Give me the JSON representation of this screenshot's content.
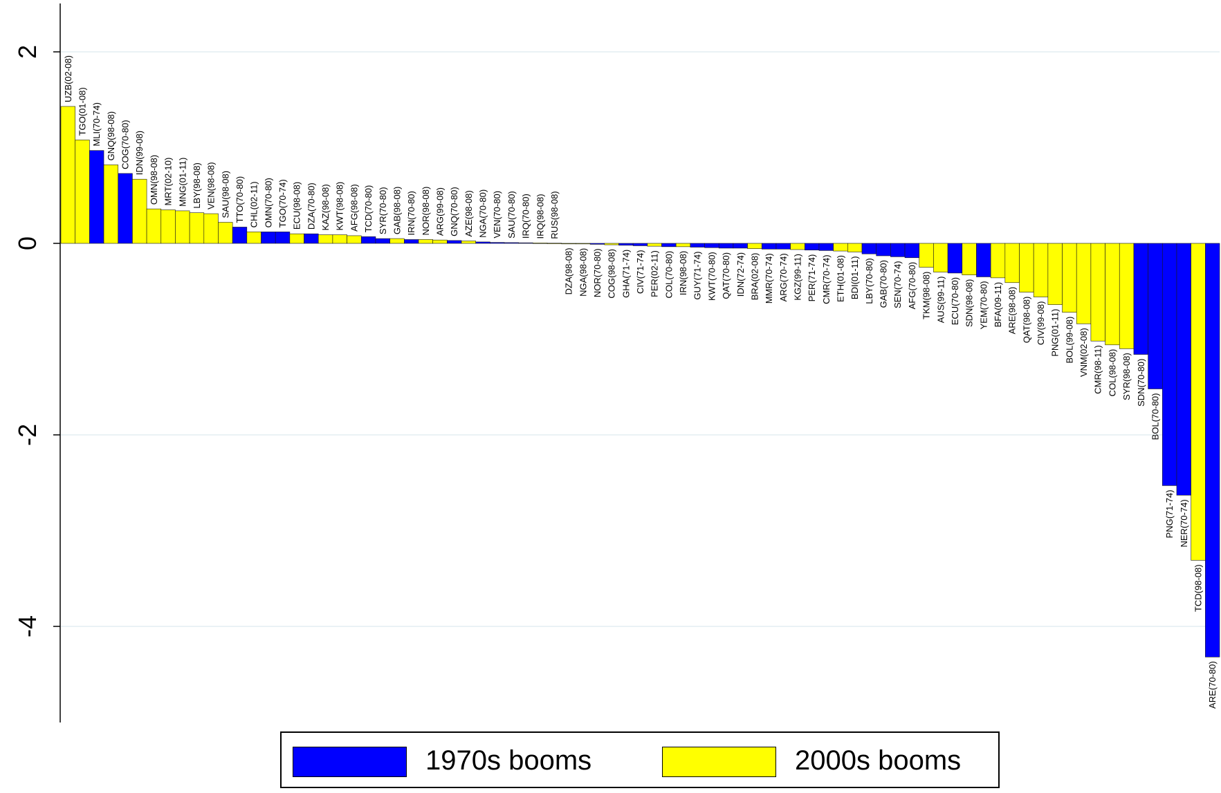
{
  "chart_data": {
    "type": "bar",
    "ylim": [
      -5,
      2.5
    ],
    "yticks": [
      "2",
      "0",
      "-2",
      "-4"
    ],
    "ytick_values": [
      2,
      0,
      -2,
      -4
    ],
    "grid": true,
    "legend": {
      "placement": "bottom",
      "entries": [
        {
          "key": "1970s",
          "label": "1970s booms",
          "color": "#0000ff"
        },
        {
          "key": "2000s",
          "label": "2000s booms",
          "color": "#ffff00"
        }
      ]
    },
    "bars": [
      {
        "label": "UZB(02-08)",
        "value": 1.43,
        "series": "2000s"
      },
      {
        "label": "TGO(01-08)",
        "value": 1.08,
        "series": "2000s"
      },
      {
        "label": "MLI(70-74)",
        "value": 0.97,
        "series": "1970s"
      },
      {
        "label": "GNQ(98-08)",
        "value": 0.82,
        "series": "2000s"
      },
      {
        "label": "COG(70-80)",
        "value": 0.73,
        "series": "1970s"
      },
      {
        "label": "IDN(99-08)",
        "value": 0.67,
        "series": "2000s"
      },
      {
        "label": "OMN(98-08)",
        "value": 0.36,
        "series": "2000s"
      },
      {
        "label": "MRT(02-10)",
        "value": 0.35,
        "series": "2000s"
      },
      {
        "label": "MNG(01-11)",
        "value": 0.34,
        "series": "2000s"
      },
      {
        "label": "LBY(98-08)",
        "value": 0.32,
        "series": "2000s"
      },
      {
        "label": "VEN(98-08)",
        "value": 0.31,
        "series": "2000s"
      },
      {
        "label": "SAU(98-08)",
        "value": 0.22,
        "series": "2000s"
      },
      {
        "label": "TTO(70-80)",
        "value": 0.17,
        "series": "1970s"
      },
      {
        "label": "CHL(02-11)",
        "value": 0.12,
        "series": "2000s"
      },
      {
        "label": "OMN(70-80)",
        "value": 0.12,
        "series": "1970s"
      },
      {
        "label": "TGO(70-74)",
        "value": 0.12,
        "series": "1970s"
      },
      {
        "label": "ECU(98-08)",
        "value": 0.1,
        "series": "2000s"
      },
      {
        "label": "DZA(70-80)",
        "value": 0.1,
        "series": "1970s"
      },
      {
        "label": "KAZ(98-08)",
        "value": 0.09,
        "series": "2000s"
      },
      {
        "label": "KWT(98-08)",
        "value": 0.09,
        "series": "2000s"
      },
      {
        "label": "AFG(98-08)",
        "value": 0.08,
        "series": "2000s"
      },
      {
        "label": "TCD(70-80)",
        "value": 0.07,
        "series": "1970s"
      },
      {
        "label": "SYR(70-80)",
        "value": 0.05,
        "series": "1970s"
      },
      {
        "label": "GAB(98-08)",
        "value": 0.05,
        "series": "2000s"
      },
      {
        "label": "IRN(70-80)",
        "value": 0.04,
        "series": "1970s"
      },
      {
        "label": "NOR(98-08)",
        "value": 0.04,
        "series": "2000s"
      },
      {
        "label": "ARG(99-08)",
        "value": 0.035,
        "series": "2000s"
      },
      {
        "label": "GNQ(70-80)",
        "value": 0.03,
        "series": "1970s"
      },
      {
        "label": "AZE(98-08)",
        "value": 0.025,
        "series": "2000s"
      },
      {
        "label": "NGA(70-80)",
        "value": 0.015,
        "series": "1970s"
      },
      {
        "label": "VEN(70-80)",
        "value": 0.01,
        "series": "1970s"
      },
      {
        "label": "SAU(70-80)",
        "value": 0.008,
        "series": "1970s"
      },
      {
        "label": "IRQ(70-80)",
        "value": 0.006,
        "series": "1970s"
      },
      {
        "label": "IRQ(98-08)",
        "value": 0.004,
        "series": "2000s"
      },
      {
        "label": "RUS(98-08)",
        "value": 0.002,
        "series": "2000s"
      },
      {
        "label": "DZA(98-08)",
        "value": -0.003,
        "series": "2000s"
      },
      {
        "label": "NGA(98-08)",
        "value": -0.006,
        "series": "2000s"
      },
      {
        "label": "NOR(70-80)",
        "value": -0.01,
        "series": "1970s"
      },
      {
        "label": "COG(98-08)",
        "value": -0.015,
        "series": "2000s"
      },
      {
        "label": "GHA(71-74)",
        "value": -0.02,
        "series": "1970s"
      },
      {
        "label": "CIV(71-74)",
        "value": -0.025,
        "series": "1970s"
      },
      {
        "label": "PER(02-11)",
        "value": -0.03,
        "series": "2000s"
      },
      {
        "label": "COL(70-80)",
        "value": -0.035,
        "series": "1970s"
      },
      {
        "label": "IRN(98-08)",
        "value": -0.035,
        "series": "2000s"
      },
      {
        "label": "GUY(71-74)",
        "value": -0.04,
        "series": "1970s"
      },
      {
        "label": "KWT(70-80)",
        "value": -0.045,
        "series": "1970s"
      },
      {
        "label": "QAT(70-80)",
        "value": -0.05,
        "series": "1970s"
      },
      {
        "label": "IDN(72-74)",
        "value": -0.05,
        "series": "1970s"
      },
      {
        "label": "BRA(02-08)",
        "value": -0.055,
        "series": "2000s"
      },
      {
        "label": "MMR(70-74)",
        "value": -0.06,
        "series": "1970s"
      },
      {
        "label": "ARG(70-74)",
        "value": -0.06,
        "series": "1970s"
      },
      {
        "label": "KGZ(99-11)",
        "value": -0.065,
        "series": "2000s"
      },
      {
        "label": "PER(71-74)",
        "value": -0.07,
        "series": "1970s"
      },
      {
        "label": "CMR(70-74)",
        "value": -0.075,
        "series": "1970s"
      },
      {
        "label": "ETH(01-08)",
        "value": -0.08,
        "series": "2000s"
      },
      {
        "label": "BDI(01-11)",
        "value": -0.09,
        "series": "2000s"
      },
      {
        "label": "LBY(70-80)",
        "value": -0.11,
        "series": "1970s"
      },
      {
        "label": "GAB(70-80)",
        "value": -0.13,
        "series": "1970s"
      },
      {
        "label": "SEN(70-74)",
        "value": -0.14,
        "series": "1970s"
      },
      {
        "label": "AFG(70-80)",
        "value": -0.15,
        "series": "1970s"
      },
      {
        "label": "TKM(98-08)",
        "value": -0.25,
        "series": "2000s"
      },
      {
        "label": "AUS(99-11)",
        "value": -0.3,
        "series": "2000s"
      },
      {
        "label": "ECU(70-80)",
        "value": -0.31,
        "series": "1970s"
      },
      {
        "label": "SDN(98-08)",
        "value": -0.33,
        "series": "2000s"
      },
      {
        "label": "YEM(70-80)",
        "value": -0.35,
        "series": "1970s"
      },
      {
        "label": "BFA(09-11)",
        "value": -0.36,
        "series": "2000s"
      },
      {
        "label": "ARE(98-08)",
        "value": -0.41,
        "series": "2000s"
      },
      {
        "label": "QAT(98-08)",
        "value": -0.51,
        "series": "2000s"
      },
      {
        "label": "CIV(99-08)",
        "value": -0.56,
        "series": "2000s"
      },
      {
        "label": "PNG(01-11)",
        "value": -0.64,
        "series": "2000s"
      },
      {
        "label": "BOL(99-08)",
        "value": -0.72,
        "series": "2000s"
      },
      {
        "label": "VNM(02-08)",
        "value": -0.84,
        "series": "2000s"
      },
      {
        "label": "CMR(98-11)",
        "value": -1.02,
        "series": "2000s"
      },
      {
        "label": "COL(98-08)",
        "value": -1.06,
        "series": "2000s"
      },
      {
        "label": "SYR(98-08)",
        "value": -1.1,
        "series": "2000s"
      },
      {
        "label": "SDN(70-80)",
        "value": -1.16,
        "series": "1970s"
      },
      {
        "label": "BOL(70-80)",
        "value": -1.52,
        "series": "1970s"
      },
      {
        "label": "PNG(71-74)",
        "value": -2.53,
        "series": "1970s"
      },
      {
        "label": "NER(70-74)",
        "value": -2.63,
        "series": "1970s"
      },
      {
        "label": "TCD(98-08)",
        "value": -3.31,
        "series": "2000s"
      },
      {
        "label": "ARE(70-80)",
        "value": -4.32,
        "series": "1970s"
      }
    ]
  }
}
